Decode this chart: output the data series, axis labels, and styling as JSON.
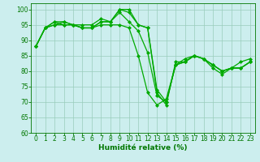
{
  "x": [
    0,
    1,
    2,
    3,
    4,
    5,
    6,
    7,
    8,
    9,
    10,
    11,
    12,
    13,
    14,
    15,
    16,
    17,
    18,
    19,
    20,
    21,
    22,
    23
  ],
  "series": [
    [
      88,
      94,
      96,
      95,
      95,
      94,
      94,
      95,
      95,
      95,
      94,
      85,
      73,
      69,
      71,
      82,
      84,
      85,
      84,
      81,
      79,
      81,
      83,
      84
    ],
    [
      88,
      94,
      96,
      96,
      95,
      95,
      95,
      97,
      96,
      99,
      96,
      93,
      86,
      72,
      70,
      82,
      83,
      85,
      84,
      82,
      80,
      81,
      81,
      83
    ],
    [
      88,
      94,
      95,
      95,
      95,
      94,
      94,
      96,
      96,
      100,
      100,
      95,
      94,
      73,
      69,
      83,
      83,
      85,
      84,
      82,
      80,
      81,
      81,
      83
    ],
    [
      88,
      94,
      95,
      96,
      95,
      94,
      94,
      96,
      96,
      100,
      99,
      95,
      94,
      74,
      70,
      82,
      83,
      85,
      84,
      82,
      80,
      81,
      81,
      83
    ]
  ],
  "line_color": "#00aa00",
  "marker": "D",
  "marker_size": 2.0,
  "bg_color": "#cceeee",
  "grid_color": "#99ccbb",
  "xlabel": "Humidité relative (%)",
  "ylim": [
    60,
    102
  ],
  "xlim": [
    -0.5,
    23.5
  ],
  "yticks": [
    60,
    65,
    70,
    75,
    80,
    85,
    90,
    95,
    100
  ],
  "xticks": [
    0,
    1,
    2,
    3,
    4,
    5,
    6,
    7,
    8,
    9,
    10,
    11,
    12,
    13,
    14,
    15,
    16,
    17,
    18,
    19,
    20,
    21,
    22,
    23
  ],
  "xlabel_fontsize": 6.5,
  "tick_fontsize": 5.5,
  "line_width": 0.9
}
